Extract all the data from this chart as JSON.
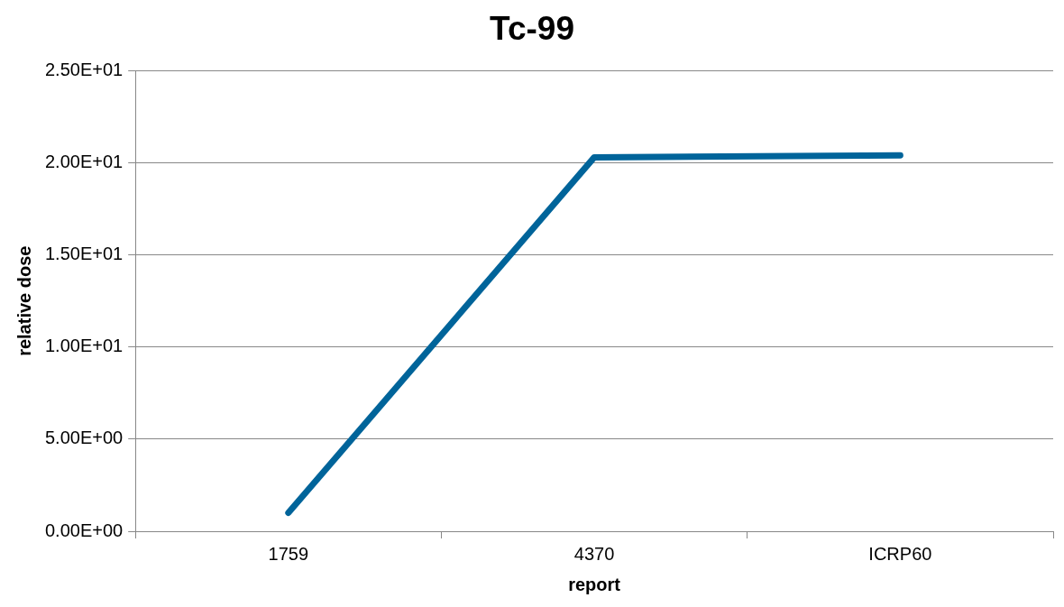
{
  "chart_data": {
    "type": "line",
    "title": "Tc-99",
    "xlabel": "report",
    "ylabel": "relative dose",
    "categories": [
      "1759",
      "4370",
      "ICRP60"
    ],
    "series": [
      {
        "color": "#00649a",
        "values": [
          1.0,
          20.3,
          20.4
        ]
      }
    ],
    "ylim": [
      0,
      25
    ],
    "yticks": [
      {
        "value": 0,
        "label": "0.00E+00"
      },
      {
        "value": 5,
        "label": "5.00E+00"
      },
      {
        "value": 10,
        "label": "1.00E+01"
      },
      {
        "value": 15,
        "label": "1.50E+01"
      },
      {
        "value": 20,
        "label": "2.00E+01"
      },
      {
        "value": 25,
        "label": "2.50E+01"
      }
    ],
    "grid": "y",
    "legend": false,
    "marker": "none",
    "line_style": "solid"
  }
}
